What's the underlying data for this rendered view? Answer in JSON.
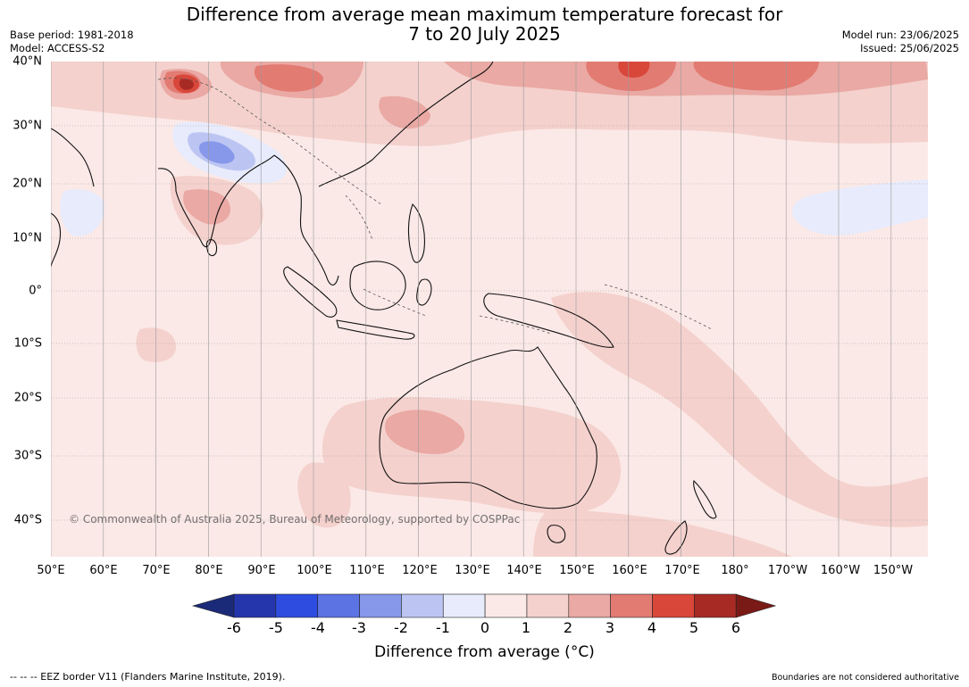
{
  "title": {
    "line1": "Difference from average mean maximum temperature forecast for",
    "line2": "7 to 20 July 2025"
  },
  "meta_left": {
    "base_period": "Base period: 1981-2018",
    "model": "Model: ACCESS-S2"
  },
  "meta_right": {
    "model_run": "Model run: 23/06/2025",
    "issued": "Issued: 25/06/2025"
  },
  "map": {
    "lat_labels": [
      "40°N",
      "30°N",
      "20°N",
      "10°N",
      "0°",
      "10°S",
      "20°S",
      "30°S",
      "40°S"
    ],
    "lon_labels": [
      "50°E",
      "60°E",
      "70°E",
      "80°E",
      "90°E",
      "100°E",
      "110°E",
      "120°E",
      "130°E",
      "140°E",
      "150°E",
      "160°E",
      "170°E",
      "180°",
      "170°W",
      "160°W",
      "150°W"
    ],
    "copyright": "© Commonwealth of Australia 2025, Bureau of Meteorology, supported by COSPPac",
    "background_color": "#fbe9e7"
  },
  "colorbar": {
    "ticks": [
      "-6",
      "-5",
      "-4",
      "-3",
      "-2",
      "-1",
      "0",
      "1",
      "2",
      "3",
      "4",
      "5",
      "6"
    ],
    "colors": [
      "#1b2a78",
      "#2536ad",
      "#2e4de0",
      "#5b73e3",
      "#8797ea",
      "#bcc5f2",
      "#e8ebfb",
      "#fbe9e7",
      "#f4d1cd",
      "#eaa9a4",
      "#e27b72",
      "#d9473a",
      "#a82a24",
      "#7a1a16"
    ],
    "label": "Difference from average (",
    "unit": "°C)"
  },
  "footer": {
    "left": "--  --  -- EEZ border V11 (Flanders Marine Institute, 2019).",
    "right": "Boundaries are not considered authoritative"
  }
}
